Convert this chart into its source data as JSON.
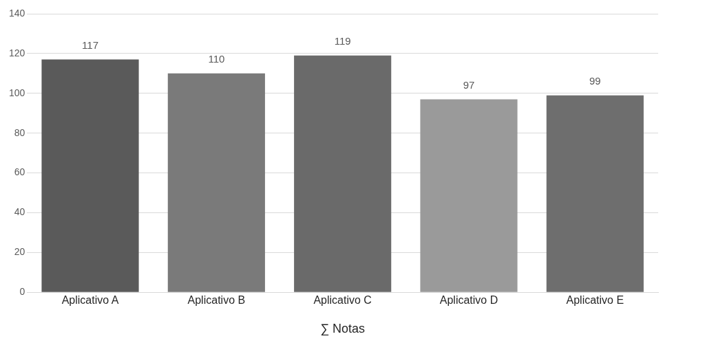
{
  "chart_data": {
    "type": "bar",
    "xlabel": "∑ Notas",
    "categories": [
      "Aplicativo A",
      "Aplicativo B",
      "Aplicativo C",
      "Aplicativo D",
      "Aplicativo E"
    ],
    "values": [
      117,
      110,
      119,
      97,
      99
    ],
    "colors": [
      "#5a5a5a",
      "#7a7a7a",
      "#6a6a6a",
      "#9a9a9a",
      "#6e6e6e"
    ],
    "ylim": [
      0,
      140
    ],
    "yticks": [
      0,
      20,
      40,
      60,
      80,
      100,
      120,
      140
    ],
    "grid": "y",
    "data_labels": true,
    "legend": false
  }
}
